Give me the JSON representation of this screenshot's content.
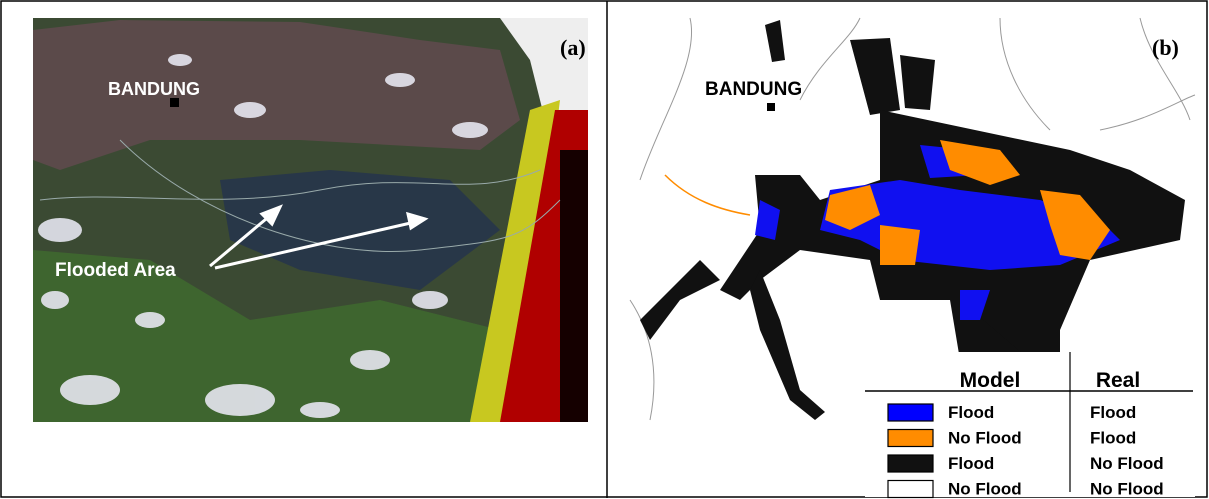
{
  "panel_a": {
    "label": "(a)",
    "city": "BANDUNG",
    "annotation": "Flooded Area"
  },
  "panel_b": {
    "label": "(b)",
    "city": "BANDUNG",
    "legend": {
      "headers": [
        "Model",
        "Real"
      ],
      "rows": [
        {
          "model": "Flood",
          "real": "Flood",
          "color": "#0000ff"
        },
        {
          "model": "No Flood",
          "real": "Flood",
          "color": "#ff8c00"
        },
        {
          "model": "Flood",
          "real": "No Flood",
          "color": "#111111"
        },
        {
          "model": "No Flood",
          "real": "No Flood",
          "color": "#ffffff"
        }
      ]
    }
  }
}
